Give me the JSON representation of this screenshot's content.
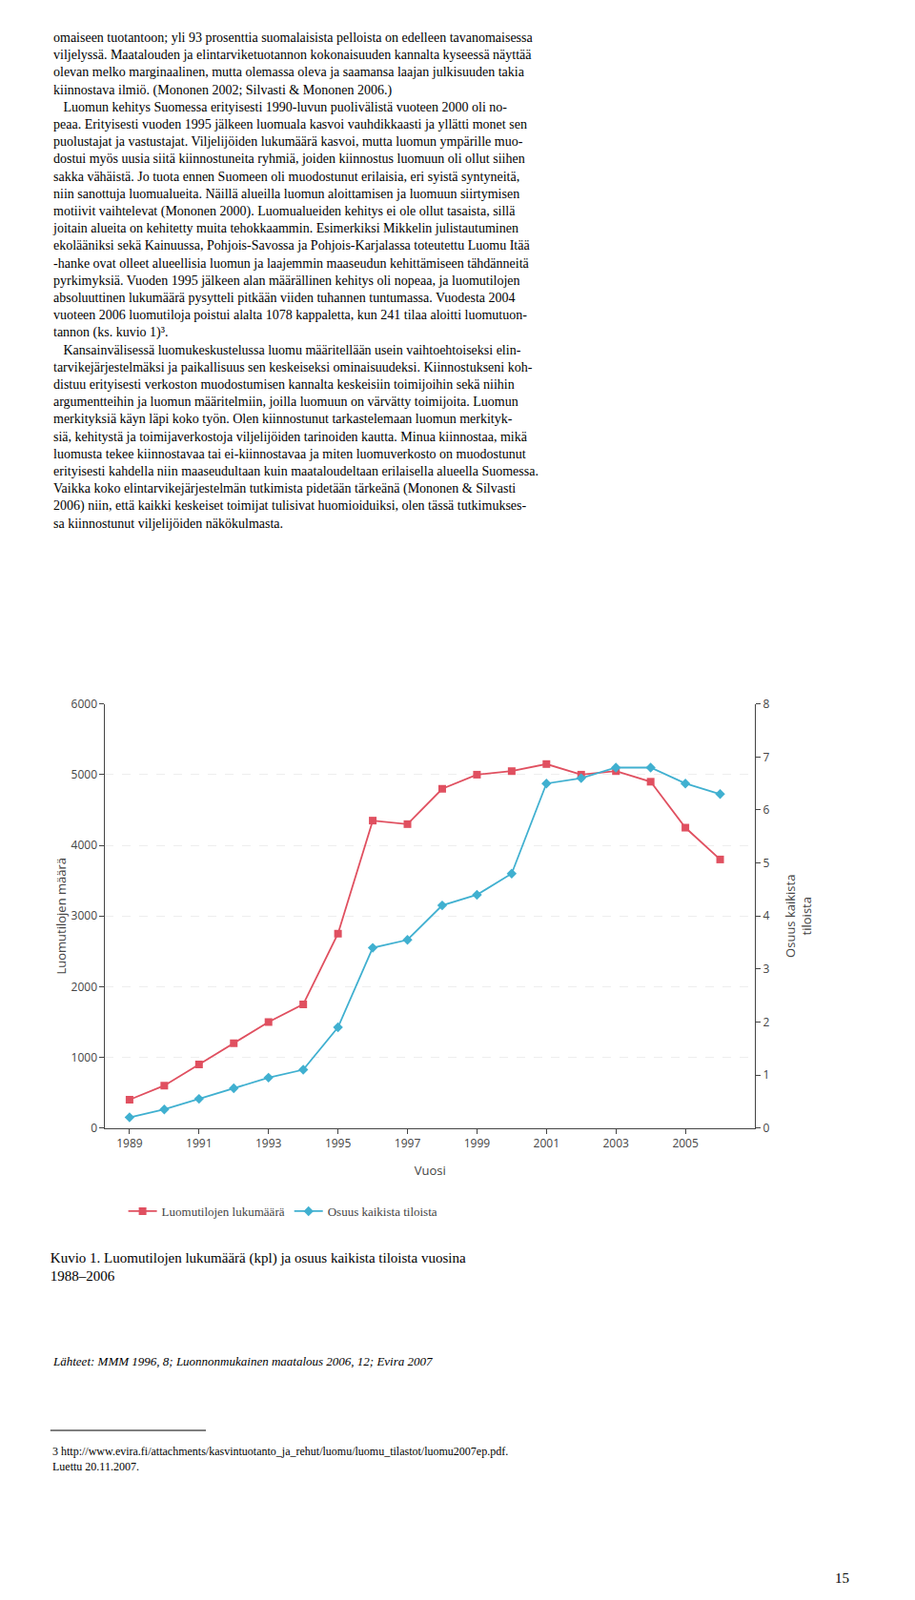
{
  "chart_data": {
    "type": "line",
    "title": "Kuvio 1. Luomutilojen lukumäärä (kpl) ja osuus kaikista tiloista vuosina\n1988–2006",
    "subtitle": "Lähteet: MMM 1996, 8; Luonnonmukainen maatalous 2006, 12; Evira 2007",
    "x": [
      1989,
      1990,
      1991,
      1992,
      1993,
      1994,
      1995,
      1996,
      1997,
      1998,
      1999,
      2000,
      2001,
      2002,
      2003,
      2004,
      2005,
      2006
    ],
    "series": [
      {
        "name": "Luomutilojen lukumäärä",
        "color": "#e05060",
        "marker": "square",
        "values": [
          400,
          600,
          900,
          1200,
          1500,
          1750,
          2750,
          4350,
          4300,
          4800,
          5000,
          5050,
          5150,
          5000,
          5050,
          4900,
          4250,
          3800
        ]
      },
      {
        "name": "Osuus kaikista tiloista",
        "color": "#40b0d0",
        "marker": "diamond",
        "axis": "y2",
        "values": [
          0.2,
          0.35,
          0.55,
          0.75,
          0.95,
          1.1,
          1.9,
          3.4,
          3.55,
          4.2,
          4.4,
          4.8,
          6.5,
          6.6,
          6.8,
          6.8,
          6.5,
          6.3
        ]
      }
    ],
    "xlabel": "Vuosi",
    "ylabel": "Luomutilojen määrä",
    "y2label": "Osuus kaikista\ntiloista",
    "xlim": [
      1988.3,
      2007.0
    ],
    "xticks": [
      1989,
      1991,
      1993,
      1995,
      1997,
      1999,
      2001,
      2003,
      2005
    ],
    "ylim": [
      0,
      6000
    ],
    "yticks": [
      0,
      1000,
      2000,
      3000,
      4000,
      5000,
      6000
    ],
    "y2lim": [
      0,
      8
    ],
    "y2ticks": [
      0,
      1,
      2,
      3,
      4,
      5,
      6,
      7,
      8
    ],
    "grid": true,
    "legend": "bottom",
    "annotations": [
      "omaiseen tuotantoon; yli 93 prosenttia suomalaisista pelloista on edelleen tavanomaisessa\nviljelyssä. Maatalouden ja elintarviketuotannon kokonaisuuden kannalta kyseessä näyttää\nolevan melko marginaalinen, mutta olemassa oleva ja saamansa laajan julkisuuden takia\nkiinnostava ilmiö. (Mononen 2002; Silvasti & Mononen 2006.)\n   Luomun kehitys Suomessa erityisesti 1990-luvun puolivälistä vuoteen 2000 oli no-\npeaa. Erityisesti vuoden 1995 jälkeen luomuala kasvoi vauhdikkaasti ja yllätti monet sen\npuolustajat ja vastustajat. Viljelijöiden lukumäärä kasvoi, mutta luomun ympärille muo-\ndostui myös uusia siitä kiinnostuneita ryhmiä, joiden kiinnostus luomuun oli ollut siihen\nsakka vähäistä. Jo tuota ennen Suomeen oli muodostunut erilaisia, eri syistä syntyneitä,\nniin sanottuja luomualueita. Näillä alueilla luomun aloittamisen ja luomuun siirtymisen\nmotiivit vaihtelevat (Mononen 2000). Luomualueiden kehitys ei ole ollut tasaista, sillä\njoitain alueita on kehitetty muita tehokkaammin. Esimerkiksi Mikkelin julistautuminen\nekolääniksi sekä Kainuussa, Pohjois-Savossa ja Pohjois-Karjalassa toteutettu Luomu Itää\n-hanke ovat olleet alueellisia luomun ja laajemmin maaseudun kehittämiseen tähdänneitä\npyrkimyksiä. Vuoden 1995 jälkeen alan määrällinen kehitys oli nopeaa, ja luomutilojen\nabsoluuttinen lukumäärä pysytteli pitkään viiden tuhannen tuntumassa. Vuodesta 2004\nvuoteen 2006 luomutiloja poistui alalta 1078 kappaletta, kun 241 tilaa aloitti luomutuon-\ntannon (ks. kuvio 1)³.\n   Kansainvälisessä luomukeskustelussa luomu määritellään usein vaihtoehtoiseksi elin-\ntarvikejärjestelmäksi ja paikallisuus sen keskeiseksi ominaisuudeksi. Kiinnostukseni koh-\ndistuu erityisesti verkoston muodostumisen kannalta keskeisiin toimijoihin sekä niihin\nargumentteihin ja luomun määritelmiin, joilla luomuun on värvätty toimijoita. Luomun\nmerkityksiä käyn läpi koko työn. Olen kiinnostunut tarkastelemaan luomun merkityk-\nsiä, kehitystä ja toimijaverkostoja viljelijöiden tarinoiden kautta. Minua kiinnostaa, mikä\nluomusta tekee kiinnostavaa tai ei-kiinnostavaa ja miten luomuverkosto on muodostunut\nerityisesti kahdella niin maaseudultaan kuin maataloudeltaan erilaisella alueella Suomessa.\nVaikka koko elintarvikejärjestelmän tutkimista pidetään tärkeänä (Mononen & Silvasti\n2006) niin, että kaikki keskeiset toimijat tulisivat huomioiduiksi, olen tässä tutkimukses-\nsa kiinnostunut viljelijöiden näkökulmasta.",
      "3 http://www.evira.fi/attachments/kasvintuotanto_ja_rehut/luomu/luomu_tilastot/luomu2007ep.pdf.\nLuettu 20.11.2007.",
      "15"
    ]
  }
}
